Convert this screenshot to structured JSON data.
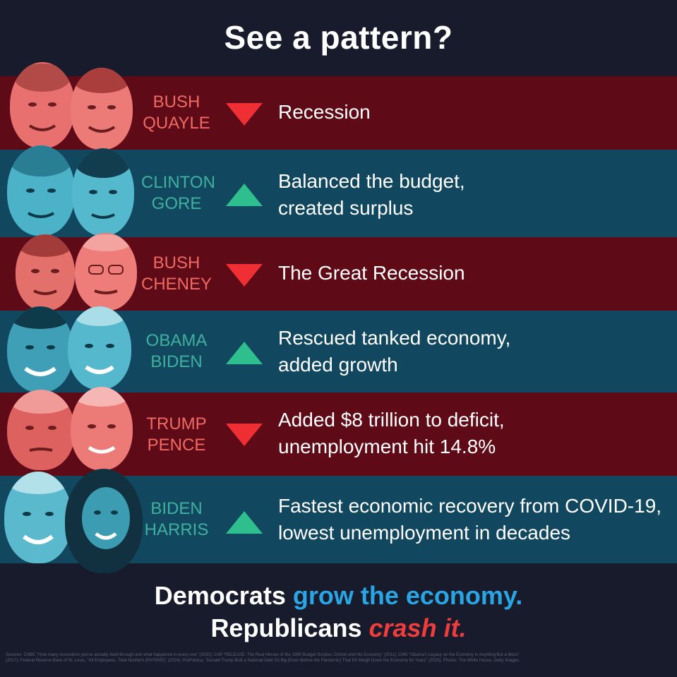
{
  "title": "See a pattern?",
  "colors": {
    "background": "#181b2c",
    "down_band": "#5e0a17",
    "up_band": "#12485f",
    "down_arrow": "#ef2f33",
    "up_arrow": "#2fbf8e",
    "blue_text": "#2aa5e3",
    "red_text": "#ef3c3c"
  },
  "rows": [
    {
      "line1": "BUSH",
      "line2": "QUAYLE",
      "direction": "down",
      "desc1": "Recession",
      "desc2": ""
    },
    {
      "line1": "CLINTON",
      "line2": "GORE",
      "direction": "up",
      "desc1": "Balanced the budget,",
      "desc2": "created surplus"
    },
    {
      "line1": "BUSH",
      "line2": "CHENEY",
      "direction": "down",
      "desc1": "The Great Recession",
      "desc2": ""
    },
    {
      "line1": "OBAMA",
      "line2": "BIDEN",
      "direction": "up",
      "desc1": "Rescued tanked economy,",
      "desc2": "added growth"
    },
    {
      "line1": "TRUMP",
      "line2": "PENCE",
      "direction": "down",
      "desc1": "Added $8 trillion to deficit,",
      "desc2": "unemployment hit 14.8%"
    },
    {
      "line1": "BIDEN",
      "line2": "HARRIS",
      "direction": "up",
      "desc1": "Fastest economic recovery from COVID-19,",
      "desc2": "lowest unemployment in decades"
    }
  ],
  "footer": {
    "line1_a": "Democrats ",
    "line1_b": "grow the economy.",
    "line2_a": "Republicans ",
    "line2_b": "crash it."
  },
  "sources": "Sources: CNBC \"How many recessions you've actually lived through and what happened in every one\" (2020); CAP \"RELEASE: The Real Heroes of the 1990 Budget Surplus: Clinton and His Economy\" (2011); CNN \"Obama's Legacy on the Economy Is Anything But a Mess\" (2017); Federal Reserve Bank of St. Louis, \"All Employees, Total Nonfarm (PAYEMS)\" (2024); ProPublica, \"Donald Trump Built a National Debt So Big (Even Before the Pandemic) That It'll Weigh Down the Economy for Years\" (2020). Photos: The White House, Getty Images."
}
